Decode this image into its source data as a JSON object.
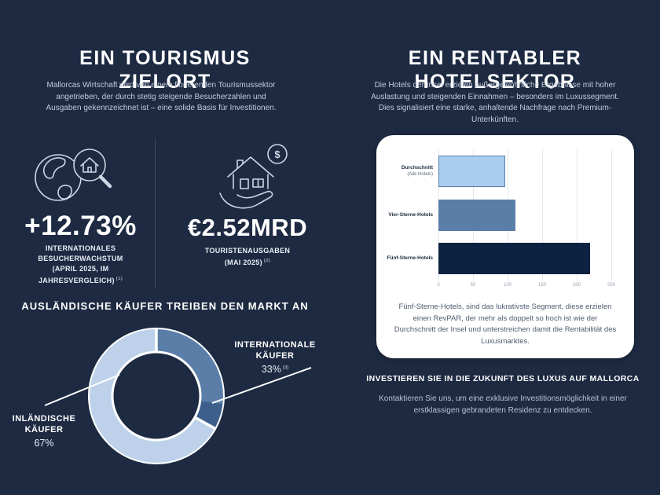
{
  "colors": {
    "background": "#1d2a42",
    "heading": "#ffffff",
    "body_text": "#c2cbd9",
    "light_blue": "#bdd2ea",
    "steel_blue": "#5b7ea9",
    "dark_wedge": "#3e5e8c",
    "navy_bar": "#0d2240",
    "card_bg": "#ffffff",
    "card_text": "#4e5b70"
  },
  "left": {
    "title": "EIN TOURISMUS\nZIELORT",
    "intro": "Mallorcas Wirtschaft wird von einem florierenden Tourismussektor angetrieben, der durch stetig steigende Besucherzahlen und Ausgaben gekennzeichnet ist – eine solide Basis für Investitionen.",
    "stats": [
      {
        "icon": "globe-magnifier-house-icon",
        "value": "+12.73%",
        "label": "INTERNATIONALES\nBESUCHERWACHSTUM\n(APRIL 2025, IM\nJAHRESVERGLEICH)",
        "footnote": "(1)"
      },
      {
        "icon": "hand-house-dollar-icon",
        "value": "€2.52MRD",
        "label": "TOURISTENAUSGABEN\n(MAI 2025)",
        "footnote": "(2)"
      }
    ],
    "donut_section": {
      "title": "AUSLÄNDISCHE KÄUFER TREIBEN DEN MARKT AN",
      "labels": {
        "domestic": {
          "name": "INLÄNDISCHE\nKÄUFER",
          "pct": "67%"
        },
        "international": {
          "name": "INTERNATIONALE\nKÄUFER",
          "pct": "33%",
          "footnote": "(3)"
        }
      }
    }
  },
  "right": {
    "title": "EIN RENTABLER\nHOTELSEKTOR",
    "intro": "Die Hotels der Insel erzielen außergewöhnliche Ergebnisse mit hoher Auslastung und steigenden Einnahmen – besonders im Luxussegment. Dies signalisiert eine starke, anhaltende Nachfrage nach Premium-Unterkünften.",
    "card_note": "Fünf-Sterne-Hotels, sind das lukrativste Segment, diese erzielen einen RevPAR, der mehr als doppelt so hoch ist wie der Durchschnitt der Insel und unterstreichen damit die Rentabilität des Luxusmarktes.",
    "cta_heading": "INVESTIEREN SIE IN DIE ZUKUNFT DES LUXUS AUF MALLORCA",
    "cta_text": "Kontaktieren Sie uns, um eine exklusive Investitionsmöglichkeit in einer erstklassigen gebrandeten Residenz zu entdecken."
  },
  "chart_data": [
    {
      "type": "pie",
      "subtype": "donut",
      "title": "AUSLÄNDISCHE KÄUFER TREIBEN DEN MARKT AN",
      "labels": [
        "INLÄNDISCHE KÄUFER",
        "INTERNATIONALE KÄUFER"
      ],
      "values": [
        67,
        33
      ],
      "unit": "%",
      "colors": [
        "#bdd2ea",
        "#5b7ea9"
      ],
      "segments_deg": [
        {
          "from": 0,
          "to": 97,
          "color": "#5b7ea9"
        },
        {
          "from": 97,
          "to": 119,
          "color": "#3e5e8c"
        },
        {
          "from": 119,
          "to": 360,
          "color": "#bdd2ea"
        }
      ],
      "dividers_deg": [
        0,
        119
      ],
      "legend_position": "callout-labels"
    },
    {
      "type": "bar",
      "orientation": "horizontal",
      "categories": [
        "Durchschnitt",
        "Vier-Sterne-Hotels",
        "Fünf-Sterne-Hotels"
      ],
      "category_notes": [
        "(Alle Hotels)",
        "",
        ""
      ],
      "values": [
        97,
        111,
        219
      ],
      "xlim": [
        0,
        250
      ],
      "xticks": [
        0,
        50,
        100,
        150,
        200,
        250
      ],
      "colors": [
        "#a9cdee",
        "#5b7ea9",
        "#0d2240"
      ],
      "borders": [
        "#5b7ea9",
        "",
        ""
      ],
      "grid": true
    }
  ]
}
